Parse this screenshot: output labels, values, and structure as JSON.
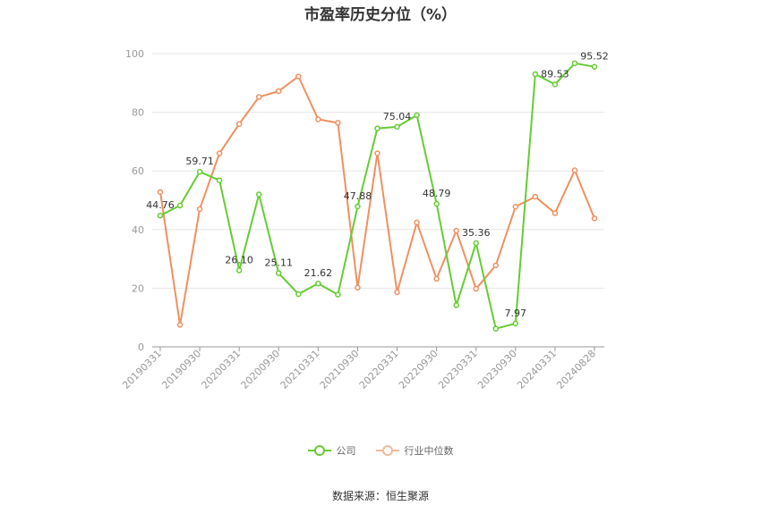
{
  "title": "市盈率历史分位（%）",
  "source": "数据来源：恒生聚源",
  "chart_data": {
    "type": "line",
    "ylim": [
      0,
      100
    ],
    "yticks": [
      0,
      20,
      40,
      60,
      80,
      100
    ],
    "x": [
      "20190331",
      "20190630",
      "20190930",
      "20191231",
      "20200331",
      "20200630",
      "20200930",
      "20201231",
      "20210331",
      "20210630",
      "20210930",
      "20211231",
      "20220331",
      "20220630",
      "20220930",
      "20221231",
      "20230331",
      "20230630",
      "20230930",
      "20231231",
      "20240331",
      "20240630",
      "20240828"
    ],
    "xtick_labels": [
      "20190331",
      "20190930",
      "20200331",
      "20200930",
      "20210331",
      "20210930",
      "20220331",
      "20220930",
      "20230331",
      "20230930",
      "20240331",
      "20240828"
    ],
    "grid": true,
    "legend_position": "bottom",
    "series": [
      {
        "name": "公司",
        "color": "#66cc33",
        "values": [
          44.76,
          48.2,
          59.71,
          56.8,
          26.1,
          52.0,
          25.11,
          18.0,
          21.62,
          17.8,
          47.88,
          74.5,
          75.04,
          79.0,
          48.79,
          14.2,
          35.36,
          6.2,
          7.97,
          93.0,
          89.53,
          96.7,
          95.52
        ],
        "labels": {
          "0": "44.76",
          "2": "59.71",
          "4": "26.10",
          "6": "25.11",
          "8": "21.62",
          "10": "47.88",
          "12": "75.04",
          "14": "48.79",
          "16": "35.36",
          "18": "7.97",
          "20": "89.53",
          "22": "95.52"
        }
      },
      {
        "name": "行业中位数",
        "color": "#f09060",
        "values": [
          52.8,
          7.5,
          47.0,
          66.0,
          76.0,
          85.2,
          87.2,
          92.2,
          77.6,
          76.4,
          20.2,
          66.0,
          18.6,
          42.4,
          23.2,
          39.6,
          19.8,
          27.8,
          47.8,
          51.2,
          45.6,
          60.2,
          43.8
        ]
      }
    ]
  }
}
